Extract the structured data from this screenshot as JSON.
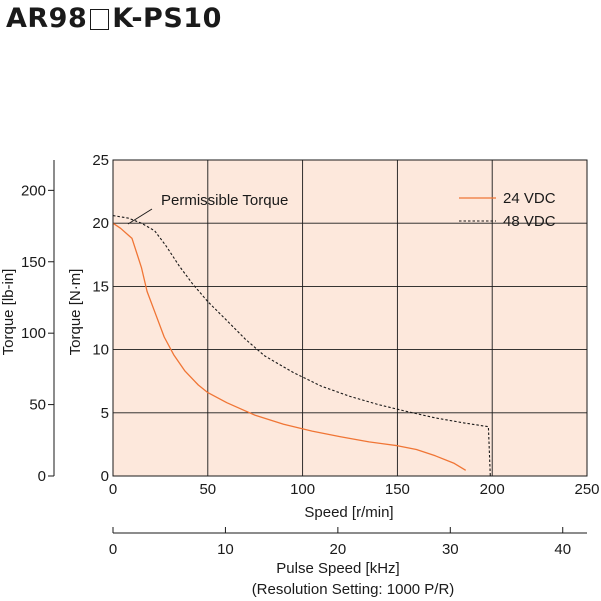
{
  "header": {
    "model_prefix": "AR98",
    "model_suffix": "K-PS10"
  },
  "colors": {
    "plot_background": "#fde8dc",
    "series_24vdc": "#f07535",
    "series_48vdc": "#1a1a1a",
    "grid": "#1a1a1a"
  },
  "chart_data": {
    "type": "line",
    "xlabel": "Speed [r/min]",
    "ylabel": "Torque [N·m]",
    "ylabel_secondary": "Torque [lb-in]",
    "x_secondary_label": "Pulse Speed [kHz]",
    "x_secondary_note": "(Resolution Setting: 1000 P/R)",
    "xlim": [
      0,
      250
    ],
    "ylim": [
      0,
      25
    ],
    "x_ticks": [
      "0",
      "50",
      "100",
      "150",
      "200",
      "250"
    ],
    "y_ticks": [
      "0",
      "5",
      "10",
      "15",
      "20",
      "25"
    ],
    "y_secondary_ticks": [
      "0",
      "50",
      "100",
      "150",
      "200"
    ],
    "y_secondary_values": [
      0,
      50,
      100,
      150,
      200
    ],
    "x_secondary_ticks": [
      "0",
      "10",
      "20",
      "30",
      "40"
    ],
    "x_secondary_values": [
      0,
      10,
      20,
      30,
      40
    ],
    "grid": true,
    "legend_position": "top-right",
    "annotations": [
      {
        "text": "Permissible Torque",
        "x": 5,
        "y": 20
      }
    ],
    "series": [
      {
        "name": "24 VDC",
        "style": "solid",
        "points": [
          [
            0,
            20
          ],
          [
            4,
            19.6
          ],
          [
            10,
            18.8
          ],
          [
            15,
            16.5
          ],
          [
            18,
            14.6
          ],
          [
            22,
            13
          ],
          [
            27,
            11
          ],
          [
            32,
            9.6
          ],
          [
            38,
            8.3
          ],
          [
            45,
            7.2
          ],
          [
            50,
            6.6
          ],
          [
            60,
            5.8
          ],
          [
            75,
            4.8
          ],
          [
            90,
            4.1
          ],
          [
            105,
            3.55
          ],
          [
            120,
            3.1
          ],
          [
            135,
            2.7
          ],
          [
            150,
            2.4
          ],
          [
            160,
            2.1
          ],
          [
            170,
            1.6
          ],
          [
            180,
            1
          ],
          [
            186,
            0.45
          ]
        ]
      },
      {
        "name": "48 VDC",
        "style": "dashed",
        "points": [
          [
            0,
            20.6
          ],
          [
            8,
            20.4
          ],
          [
            15,
            20
          ],
          [
            22,
            19.4
          ],
          [
            28,
            18.2
          ],
          [
            35,
            16.6
          ],
          [
            42,
            15.2
          ],
          [
            50,
            13.8
          ],
          [
            60,
            12.3
          ],
          [
            70,
            10.8
          ],
          [
            80,
            9.5
          ],
          [
            95,
            8.2
          ],
          [
            110,
            7.1
          ],
          [
            125,
            6.3
          ],
          [
            140,
            5.65
          ],
          [
            155,
            5.1
          ],
          [
            170,
            4.6
          ],
          [
            185,
            4.2
          ],
          [
            198,
            3.9
          ],
          [
            199,
            0
          ]
        ]
      }
    ]
  }
}
